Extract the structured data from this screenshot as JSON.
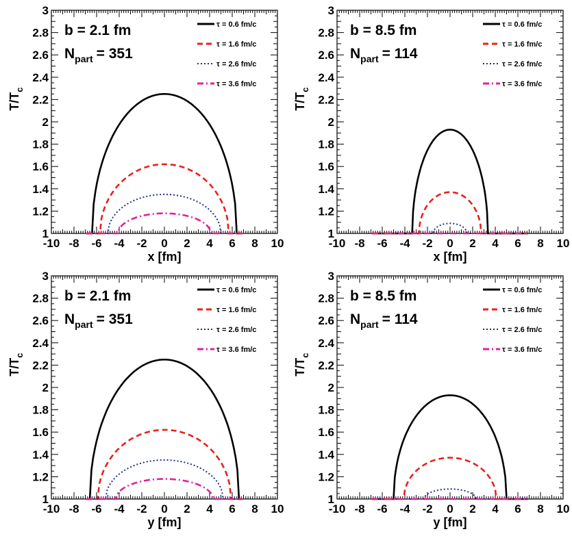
{
  "chart_data": [
    {
      "type": "line",
      "xlabel": "x [fm]",
      "ylabel_main": "T/T",
      "ylabel_sub": "c",
      "xlim": [
        -10,
        10
      ],
      "ylim": [
        1,
        3
      ],
      "xticks": [
        "-10",
        "-8",
        "-6",
        "-4",
        "-2",
        "0",
        "2",
        "4",
        "6",
        "8",
        "10"
      ],
      "yticks": [
        "1",
        "1.2",
        "1.4",
        "1.6",
        "1.8",
        "2",
        "2.2",
        "2.4",
        "2.6",
        "2.8",
        "3"
      ],
      "annotation": {
        "b": "b = 2.1 fm",
        "npart_main": "N",
        "npart_sub": "part",
        "npart_value": "= 351"
      },
      "series": [
        {
          "name": "τ = 0.6 fm/c",
          "color": "#000000",
          "dash": "solid",
          "peak": 2.25,
          "edge": 6.4
        },
        {
          "name": "τ = 1.6 fm/c",
          "color": "#e8201e",
          "dash": "dashed",
          "peak": 1.62,
          "edge": 5.7
        },
        {
          "name": "τ = 2.6 fm/c",
          "color": "#1e2a8f",
          "dash": "dotted",
          "peak": 1.35,
          "edge": 5.0
        },
        {
          "name": "τ = 3.6 fm/c",
          "color": "#e0219a",
          "dash": "dashdot",
          "peak": 1.18,
          "edge": 4.1
        }
      ]
    },
    {
      "type": "line",
      "xlabel": "x [fm]",
      "ylabel_main": "T/T",
      "ylabel_sub": "c",
      "xlim": [
        -10,
        10
      ],
      "ylim": [
        1,
        3
      ],
      "xticks": [
        "-10",
        "-8",
        "-6",
        "-4",
        "-2",
        "0",
        "2",
        "4",
        "6",
        "8",
        "10"
      ],
      "yticks": [
        "1",
        "1.2",
        "1.4",
        "1.6",
        "1.8",
        "2",
        "2.2",
        "2.4",
        "2.6",
        "2.8",
        "3"
      ],
      "annotation": {
        "b": "b = 8.5 fm",
        "npart_main": "N",
        "npart_sub": "part",
        "npart_value": "= 114"
      },
      "series": [
        {
          "name": "τ = 0.6 fm/c",
          "color": "#000000",
          "dash": "solid",
          "peak": 1.93,
          "edge": 3.35
        },
        {
          "name": "τ = 1.6 fm/c",
          "color": "#e8201e",
          "dash": "dashed",
          "peak": 1.37,
          "edge": 2.75
        },
        {
          "name": "τ = 2.6 fm/c",
          "color": "#1e2a8f",
          "dash": "dotted",
          "peak": 1.09,
          "edge": 1.5
        },
        {
          "name": "τ = 3.6 fm/c",
          "color": "#e0219a",
          "dash": "dashdot",
          "peak": 1.0,
          "edge": 0
        }
      ]
    },
    {
      "type": "line",
      "xlabel": "y [fm]",
      "ylabel_main": "T/T",
      "ylabel_sub": "c",
      "xlim": [
        -10,
        10
      ],
      "ylim": [
        1,
        3
      ],
      "xticks": [
        "-10",
        "-8",
        "-6",
        "-4",
        "-2",
        "0",
        "2",
        "4",
        "6",
        "8",
        "10"
      ],
      "yticks": [
        "1",
        "1.2",
        "1.4",
        "1.6",
        "1.8",
        "2",
        "2.2",
        "2.4",
        "2.6",
        "2.8",
        "3"
      ],
      "annotation": {
        "b": "b = 2.1 fm",
        "npart_main": "N",
        "npart_sub": "part",
        "npart_value": "= 351"
      },
      "series": [
        {
          "name": "τ = 0.6 fm/c",
          "color": "#000000",
          "dash": "solid",
          "peak": 2.25,
          "edge": 6.6
        },
        {
          "name": "τ = 1.6 fm/c",
          "color": "#e8201e",
          "dash": "dashed",
          "peak": 1.62,
          "edge": 5.9
        },
        {
          "name": "τ = 2.6 fm/c",
          "color": "#1e2a8f",
          "dash": "dotted",
          "peak": 1.35,
          "edge": 5.2
        },
        {
          "name": "τ = 3.6 fm/c",
          "color": "#e0219a",
          "dash": "dashdot",
          "peak": 1.18,
          "edge": 4.3
        }
      ]
    },
    {
      "type": "line",
      "xlabel": "y [fm]",
      "ylabel_main": "T/T",
      "ylabel_sub": "c",
      "xlim": [
        -10,
        10
      ],
      "ylim": [
        1,
        3
      ],
      "xticks": [
        "-10",
        "-8",
        "-6",
        "-4",
        "-2",
        "0",
        "2",
        "4",
        "6",
        "8",
        "10"
      ],
      "yticks": [
        "1",
        "1.2",
        "1.4",
        "1.6",
        "1.8",
        "2",
        "2.2",
        "2.4",
        "2.6",
        "2.8",
        "3"
      ],
      "annotation": {
        "b": "b = 8.5 fm",
        "npart_main": "N",
        "npart_sub": "part",
        "npart_value": "= 114"
      },
      "series": [
        {
          "name": "τ = 0.6 fm/c",
          "color": "#000000",
          "dash": "solid",
          "peak": 1.93,
          "edge": 5.0
        },
        {
          "name": "τ = 1.6 fm/c",
          "color": "#e8201e",
          "dash": "dashed",
          "peak": 1.37,
          "edge": 4.1
        },
        {
          "name": "τ = 2.6 fm/c",
          "color": "#1e2a8f",
          "dash": "dotted",
          "peak": 1.09,
          "edge": 2.3
        },
        {
          "name": "τ = 3.6 fm/c",
          "color": "#e0219a",
          "dash": "dashdot",
          "peak": 1.0,
          "edge": 0
        }
      ]
    }
  ]
}
